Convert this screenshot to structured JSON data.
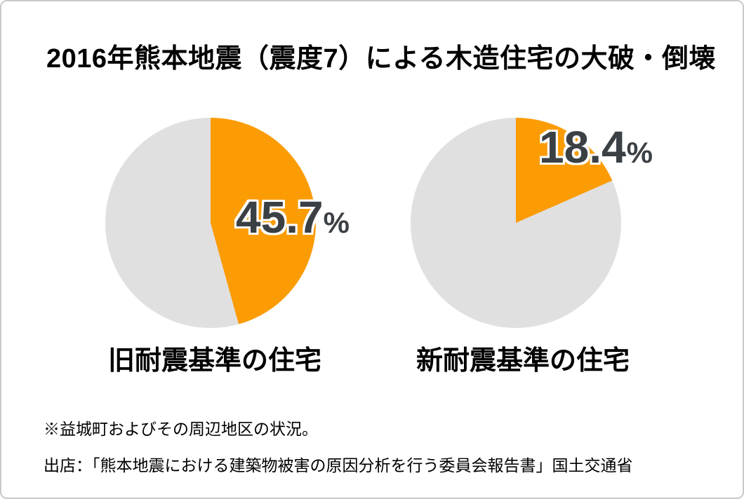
{
  "title": "2016年熊本地震（震度7）による木造住宅の大破・倒壊",
  "colors": {
    "highlight_orange": "#fb9c05",
    "remainder_gray": "#e0e0e0",
    "value_text": "#3b4045",
    "text_black": "#000000",
    "card_border": "#c9c9c9",
    "background": "#ffffff"
  },
  "chart_data": [
    {
      "type": "pie",
      "caption": "旧耐震基準の住宅",
      "value_label": "45.7",
      "unit": "%",
      "start_angle_deg": 0,
      "direction": "clockwise",
      "slices": [
        {
          "value": 45.7,
          "color": "#fb9c05"
        },
        {
          "value": 54.3,
          "color": "#e0e0e0"
        }
      ]
    },
    {
      "type": "pie",
      "caption": "新耐震基準の住宅",
      "value_label": "18.4",
      "unit": "%",
      "start_angle_deg": 0,
      "direction": "clockwise",
      "slices": [
        {
          "value": 18.4,
          "color": "#fb9c05"
        },
        {
          "value": 81.6,
          "color": "#e0e0e0"
        }
      ]
    }
  ],
  "footnotes": {
    "note": "※益城町およびその周辺地区の状況。",
    "source": "出店：「熊本地震における建築物被害の原因分析を行う委員会報告書」国土交通省"
  }
}
